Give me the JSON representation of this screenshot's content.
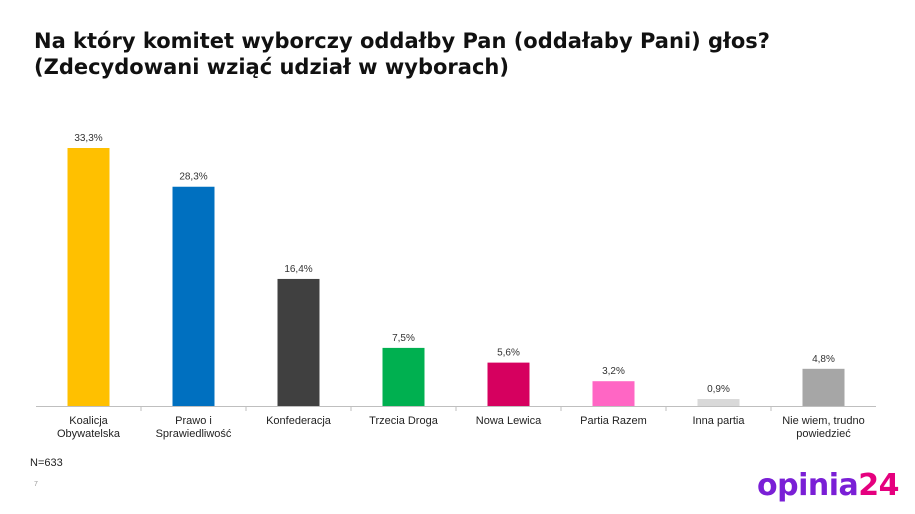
{
  "header": {
    "title_line1": "Na który komitet wyborczy oddałby Pan (oddałaby Pani) głos?",
    "title_line2": "(Zdecydowani wziąć udział w wyborach)"
  },
  "footer": {
    "sample": "N=633",
    "page_number": "7",
    "logo_text_main": "opinia",
    "logo_text_num": "24"
  },
  "chart_data": {
    "type": "bar",
    "title": "",
    "xlabel": "",
    "ylabel": "",
    "ylim": [
      0,
      35
    ],
    "grid": false,
    "legend": "none",
    "categories": [
      [
        "Koalicja",
        "Obywatelska"
      ],
      [
        "Prawo i",
        "Sprawiedliwość"
      ],
      [
        "Konfederacja"
      ],
      [
        "Trzecia Droga"
      ],
      [
        "Nowa Lewica"
      ],
      [
        "Partia Razem"
      ],
      [
        "Inna partia"
      ],
      [
        "Nie wiem, trudno",
        "powiedzieć"
      ]
    ],
    "values": [
      33.3,
      28.3,
      16.4,
      7.5,
      5.6,
      3.2,
      0.9,
      4.8
    ],
    "data_labels": [
      "33,3%",
      "28,3%",
      "16,4%",
      "7,5%",
      "5,6%",
      "3,2%",
      "0,9%",
      "4,8%"
    ],
    "colors": [
      "#ffc000",
      "#0070c0",
      "#404040",
      "#00b050",
      "#d6005f",
      "#ff66c4",
      "#d9d9d9",
      "#a6a6a6"
    ]
  }
}
